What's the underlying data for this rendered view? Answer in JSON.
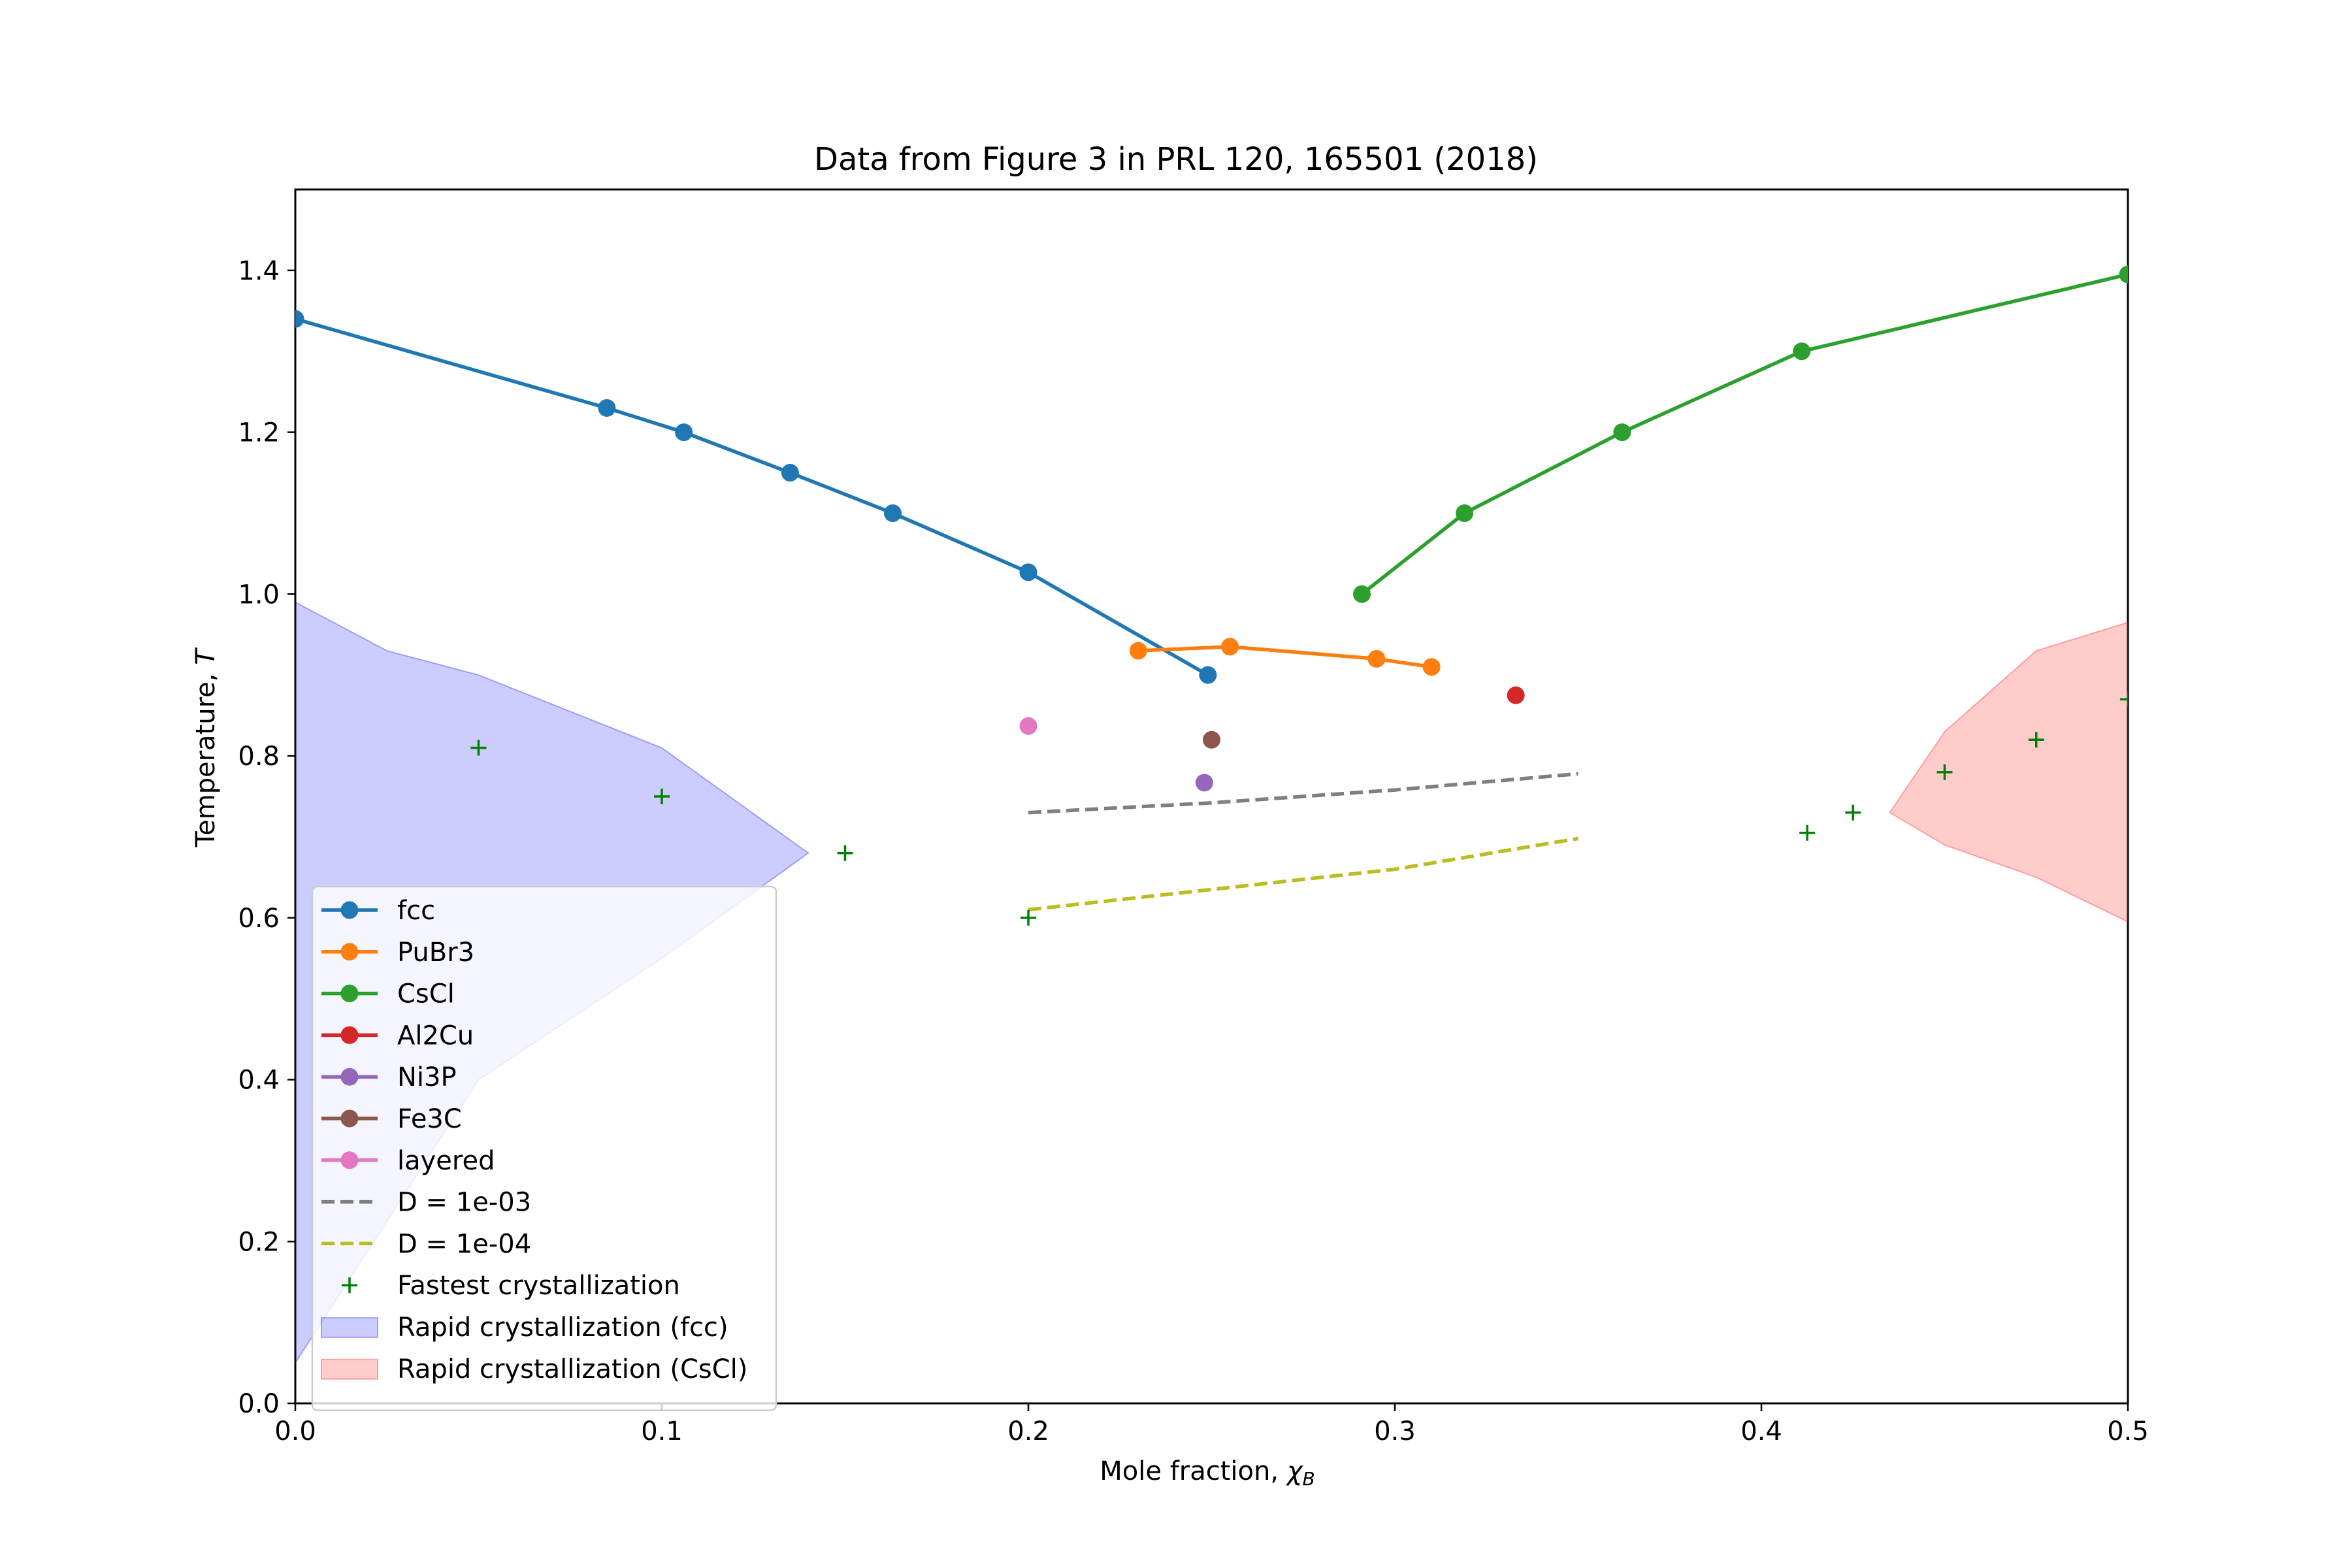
{
  "chart_data": {
    "type": "line",
    "title": "Data from Figure 3 in PRL 120, 165501 (2018)",
    "xlabel": "Mole fraction, ",
    "xlabel_symbol": "χ",
    "xlabel_subscript": "B",
    "ylabel": "Temperature, ",
    "ylabel_symbol": "T",
    "xlim": [
      0.0,
      0.5
    ],
    "ylim": [
      0.0,
      1.5
    ],
    "x_ticks": [
      0.0,
      0.1,
      0.2,
      0.3,
      0.4,
      0.5
    ],
    "x_tick_labels": [
      "0.0",
      "0.1",
      "0.2",
      "0.3",
      "0.4",
      "0.5"
    ],
    "y_ticks": [
      0.0,
      0.2,
      0.4,
      0.6,
      0.8,
      1.0,
      1.2,
      1.4
    ],
    "y_tick_labels": [
      "0.0",
      "0.2",
      "0.4",
      "0.6",
      "0.8",
      "1.0",
      "1.2",
      "1.4"
    ],
    "grid": false,
    "legend_position": "lower-left",
    "series": [
      {
        "name": "fcc",
        "kind": "line-marker",
        "color": "#1f77b4",
        "points": [
          [
            0.0,
            1.34
          ],
          [
            0.085,
            1.23
          ],
          [
            0.106,
            1.2
          ],
          [
            0.135,
            1.15
          ],
          [
            0.163,
            1.1
          ],
          [
            0.2,
            1.027
          ],
          [
            0.249,
            0.9
          ]
        ]
      },
      {
        "name": "PuBr3",
        "kind": "line-marker",
        "color": "#ff7f0e",
        "points": [
          [
            0.23,
            0.93
          ],
          [
            0.255,
            0.935
          ],
          [
            0.295,
            0.92
          ],
          [
            0.31,
            0.91
          ]
        ]
      },
      {
        "name": "CsCl",
        "kind": "line-marker",
        "color": "#2ca02c",
        "points": [
          [
            0.291,
            1.0
          ],
          [
            0.319,
            1.1
          ],
          [
            0.362,
            1.2
          ],
          [
            0.411,
            1.3
          ],
          [
            0.5,
            1.395
          ]
        ]
      },
      {
        "name": "Al2Cu",
        "kind": "line-marker",
        "color": "#d62728",
        "points": [
          [
            0.333,
            0.875
          ]
        ]
      },
      {
        "name": "Ni3P",
        "kind": "line-marker",
        "color": "#9467bd",
        "points": [
          [
            0.248,
            0.767
          ]
        ]
      },
      {
        "name": "Fe3C",
        "kind": "line-marker",
        "color": "#8c564b",
        "points": [
          [
            0.25,
            0.82
          ]
        ]
      },
      {
        "name": "layered",
        "kind": "line-marker",
        "color": "#e377c2",
        "points": [
          [
            0.2,
            0.837
          ]
        ]
      },
      {
        "name": "D = 1e-03",
        "kind": "dashed",
        "color": "#7f7f7f",
        "points": [
          [
            0.2,
            0.73
          ],
          [
            0.25,
            0.742
          ],
          [
            0.3,
            0.758
          ],
          [
            0.35,
            0.778
          ]
        ]
      },
      {
        "name": "D = 1e-04",
        "kind": "dashed",
        "color": "#bcbd22",
        "points": [
          [
            0.2,
            0.61
          ],
          [
            0.25,
            0.635
          ],
          [
            0.3,
            0.66
          ],
          [
            0.35,
            0.698
          ]
        ]
      },
      {
        "name": "Fastest crystallization",
        "kind": "plus",
        "color": "#008000",
        "points": [
          [
            0.05,
            0.81
          ],
          [
            0.1,
            0.75
          ],
          [
            0.15,
            0.68
          ],
          [
            0.2,
            0.6
          ],
          [
            0.4125,
            0.705
          ],
          [
            0.425,
            0.73
          ],
          [
            0.45,
            0.78
          ],
          [
            0.475,
            0.82
          ],
          [
            0.5,
            0.87
          ]
        ]
      },
      {
        "name": "Rapid crystallization (fcc)",
        "kind": "fill",
        "color": "#0000ff",
        "opacity": 0.2,
        "upper": [
          [
            0.0,
            0.99
          ],
          [
            0.025,
            0.93
          ],
          [
            0.05,
            0.9
          ],
          [
            0.1,
            0.81
          ],
          [
            0.14,
            0.68
          ]
        ],
        "lower": [
          [
            0.0,
            0.05
          ],
          [
            0.05,
            0.4
          ],
          [
            0.1,
            0.55
          ],
          [
            0.14,
            0.68
          ]
        ]
      },
      {
        "name": "Rapid crystallization (CsCl)",
        "kind": "fill",
        "color": "#ff0000",
        "opacity": 0.2,
        "upper": [
          [
            0.435,
            0.73
          ],
          [
            0.45,
            0.83
          ],
          [
            0.475,
            0.93
          ],
          [
            0.5,
            0.965
          ]
        ],
        "lower": [
          [
            0.435,
            0.73
          ],
          [
            0.45,
            0.69
          ],
          [
            0.475,
            0.65
          ],
          [
            0.5,
            0.595
          ]
        ]
      }
    ]
  }
}
